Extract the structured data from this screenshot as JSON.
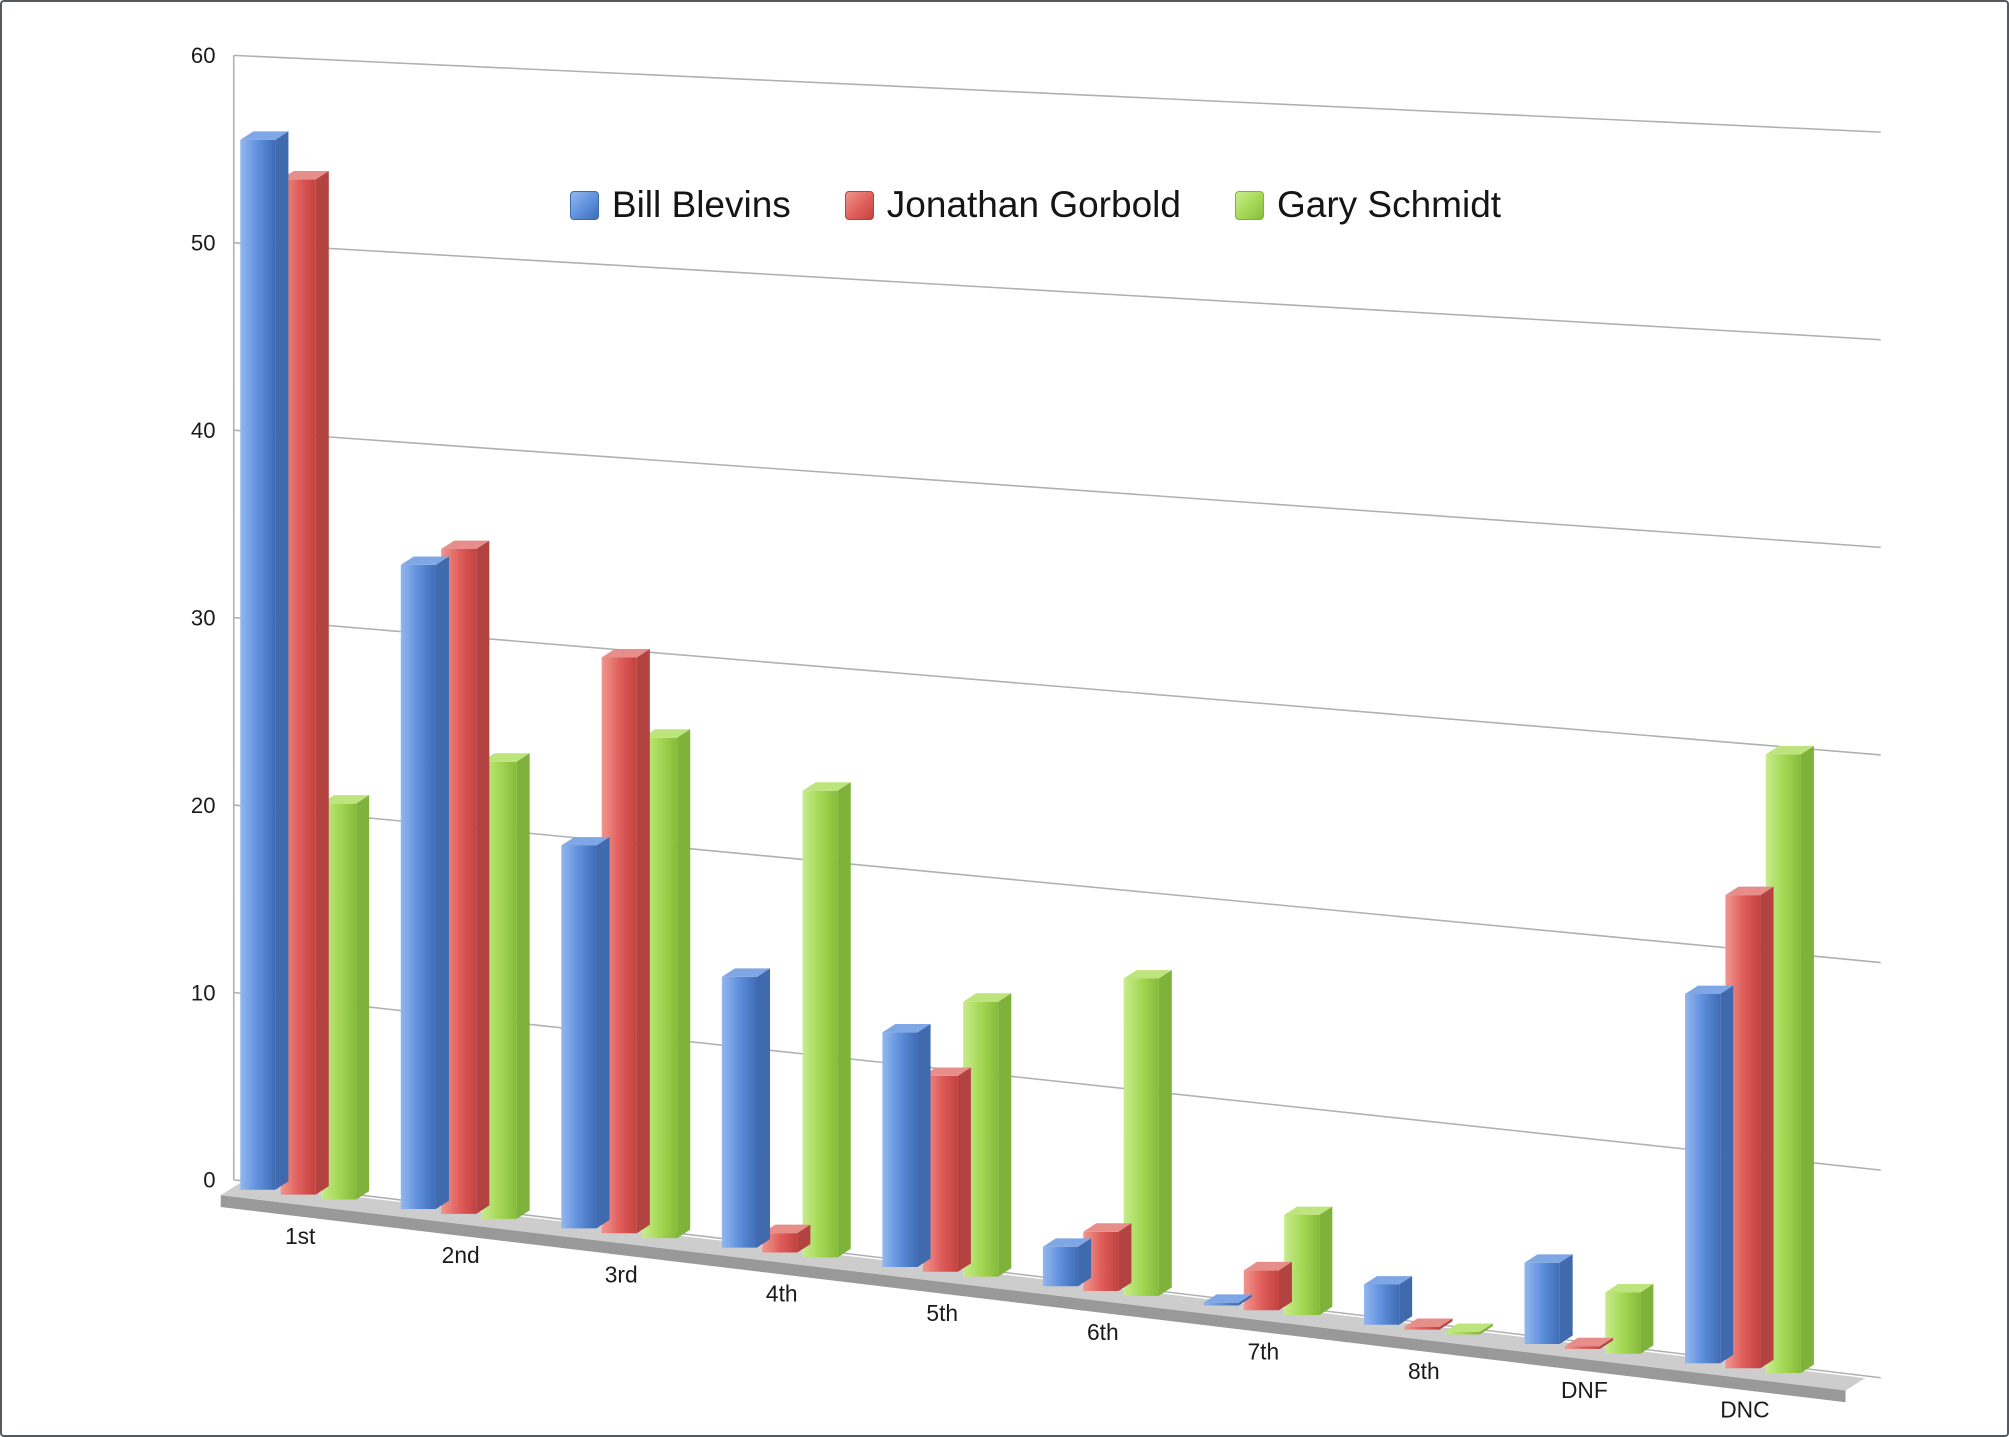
{
  "chart_data": {
    "type": "bar",
    "projection": "3d",
    "title": "",
    "categories": [
      "1st",
      "2nd",
      "3rd",
      "4th",
      "5th",
      "6th",
      "7th",
      "8th",
      "DNF",
      "DNC"
    ],
    "series": [
      {
        "name": "Bill Blevins",
        "color": "#5e8fdc",
        "colors": {
          "light": "#93b7ee",
          "face": "#5e8fdc",
          "dark": "#3f6cb4",
          "top": "#7fa7e6",
          "side": "#4169ae"
        },
        "values": [
          56,
          34,
          20,
          14,
          12,
          2,
          0,
          2,
          4,
          18
        ]
      },
      {
        "name": "Jonathan Gorbold",
        "color": "#e05f5c",
        "colors": {
          "light": "#f0968f",
          "face": "#e05f5c",
          "dark": "#c34240",
          "top": "#e88e8a",
          "side": "#b24341"
        },
        "values": [
          54,
          35,
          30,
          1,
          10,
          3,
          2,
          0,
          0,
          23
        ]
      },
      {
        "name": "Gary Schmidt",
        "color": "#a5d855",
        "colors": {
          "light": "#c8eb8e",
          "face": "#a5d855",
          "dark": "#86bb3a",
          "top": "#bde47d",
          "side": "#7fb23b"
        },
        "values": [
          21,
          24,
          26,
          24,
          14,
          16,
          5,
          0,
          3,
          30
        ]
      }
    ],
    "yticks": [
      0,
      10,
      20,
      30,
      40,
      50,
      60
    ],
    "ylim": [
      0,
      60
    ],
    "grid": true,
    "legend_position": "top-center",
    "axis_color": "#b0b0b0",
    "label_color": "#1a1a1a",
    "floor_colors": {
      "top": "#cdcdcd",
      "front": "#999999"
    }
  }
}
